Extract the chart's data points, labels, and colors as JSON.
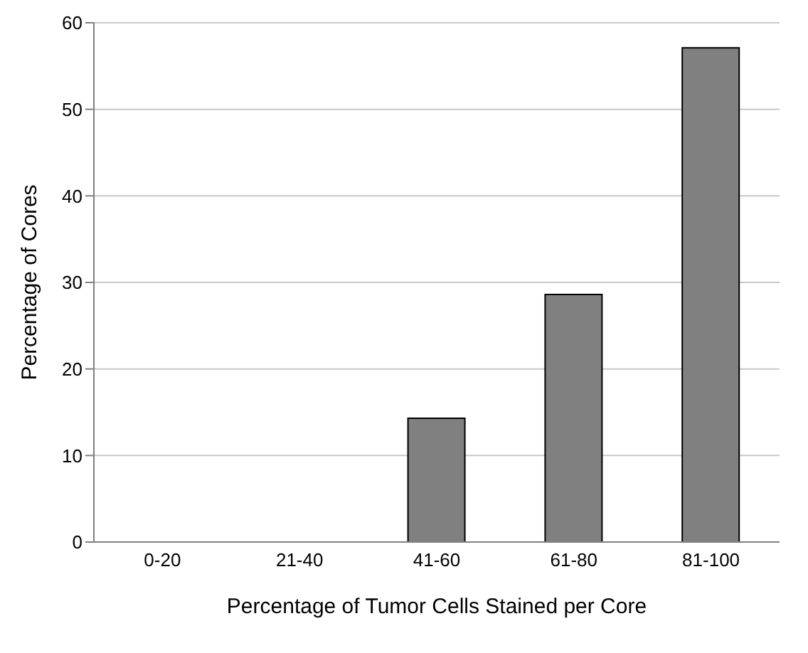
{
  "chart_data": {
    "type": "bar",
    "xlabel": "Percentage of Tumor Cells Stained per Core",
    "ylabel": "Percentage of Cores",
    "categories": [
      "0-20",
      "21-40",
      "41-60",
      "61-80",
      "81-100"
    ],
    "values": [
      0,
      0,
      14.3,
      28.6,
      57.1
    ],
    "color": "#808080",
    "ylim": [
      0,
      60
    ],
    "yticks": [
      0,
      10,
      20,
      30,
      40,
      50,
      60
    ],
    "grid": "y"
  }
}
